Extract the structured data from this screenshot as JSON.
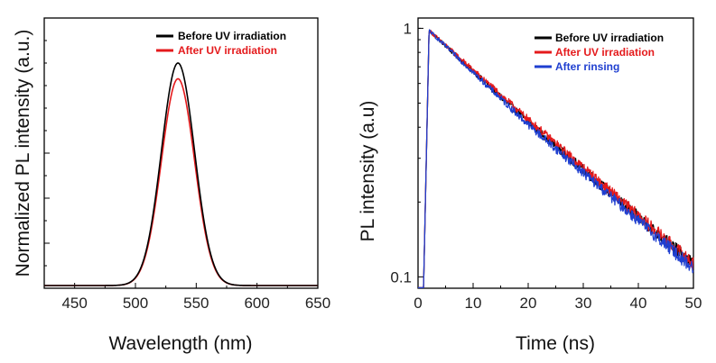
{
  "chart_data": [
    {
      "type": "line",
      "title": "",
      "xlabel": "Wavelength (nm)",
      "ylabel": "Normalized PL intensity (a.u.)",
      "xlim": [
        425,
        650
      ],
      "ylim": [
        0,
        1.2
      ],
      "x_ticks": [
        450,
        500,
        550,
        600,
        650
      ],
      "y_ticks_labeled": false,
      "grid": false,
      "legend_position": "top-right",
      "series": [
        {
          "name": "Before UV irradiation",
          "color": "#000000",
          "peak_wavelength": 535,
          "peak_intensity": 1.0,
          "fwhm": 32,
          "baseline": 0.012
        },
        {
          "name": "After UV irradiation",
          "color": "#e41a1c",
          "peak_wavelength": 535,
          "peak_intensity": 0.93,
          "fwhm": 32,
          "baseline": 0.012
        }
      ]
    },
    {
      "type": "line",
      "title": "",
      "xlabel": "Time (ns)",
      "ylabel": "PL intensity (a.u)",
      "xlim": [
        0,
        50
      ],
      "ylim": [
        0.09,
        1.1
      ],
      "yscale": "log",
      "x_ticks": [
        0,
        10,
        20,
        30,
        40,
        50
      ],
      "y_ticks": [
        {
          "value": 0.1,
          "label": "0.1"
        },
        {
          "value": 1,
          "label": "1"
        }
      ],
      "grid": false,
      "legend_position": "top-right",
      "series": [
        {
          "name": "Before UV irradiation",
          "color": "#000000",
          "rise_start_ns": 1.0,
          "peak_time_ns": 2.0,
          "peak_value": 0.98,
          "value_at_20ns": 0.42,
          "value_at_50ns": 0.112
        },
        {
          "name": "After UV irradiation",
          "color": "#e41a1c",
          "rise_start_ns": 1.0,
          "peak_time_ns": 2.0,
          "peak_value": 0.98,
          "value_at_20ns": 0.43,
          "value_at_50ns": 0.113
        },
        {
          "name": "After rinsing",
          "color": "#1f3fd0",
          "rise_start_ns": 1.0,
          "peak_time_ns": 2.0,
          "peak_value": 0.98,
          "value_at_20ns": 0.41,
          "value_at_50ns": 0.108
        }
      ]
    }
  ]
}
